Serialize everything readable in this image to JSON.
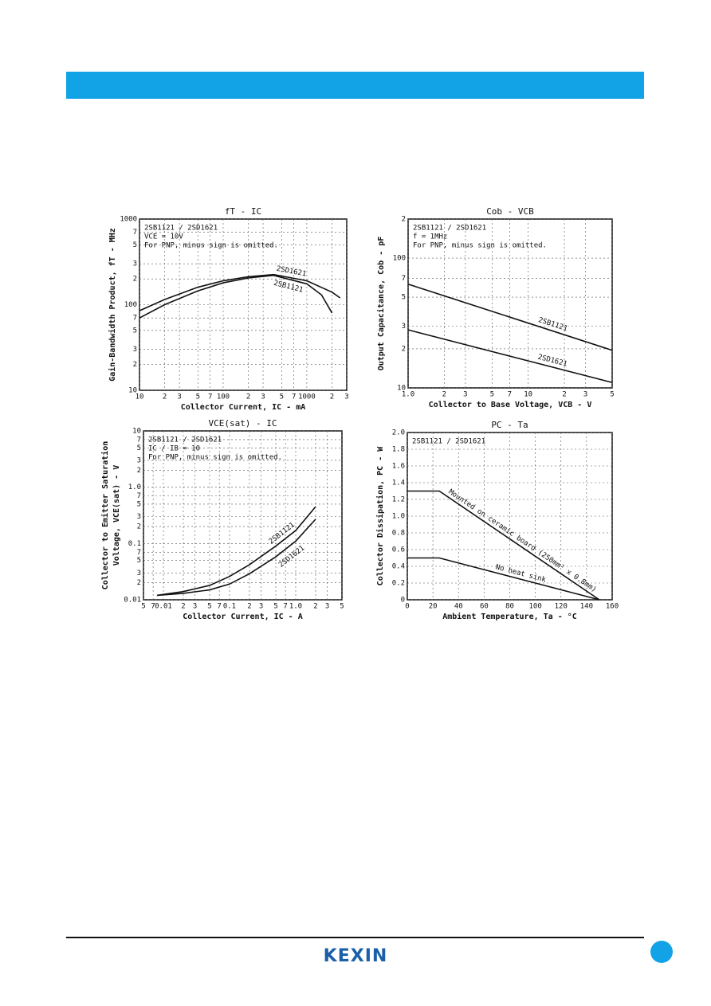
{
  "chart_data": [
    {
      "type": "line",
      "title": "fT - IC",
      "xlabel": "Collector Current, IC - mA",
      "ylabel": "Gain-Bandwidth Product, fT - MHz",
      "annotations": [
        "2SB1121 / 2SD1621",
        "VCE = 10V",
        "For PNP, minus sign is omitted."
      ],
      "xlog": true,
      "ylog": true,
      "grid": true,
      "xlim": [
        10,
        3000
      ],
      "ylim": [
        10,
        1000
      ],
      "xticks": [
        10,
        {
          "value": 20,
          "label": "2"
        },
        {
          "value": 30,
          "label": "3"
        },
        {
          "value": 50,
          "label": "5"
        },
        {
          "value": 70,
          "label": "7"
        },
        100,
        {
          "value": 200,
          "label": "2"
        },
        {
          "value": 300,
          "label": "3"
        },
        {
          "value": 500,
          "label": "5"
        },
        {
          "value": 700,
          "label": "7"
        },
        1000,
        {
          "value": 2000,
          "label": "2"
        },
        {
          "value": 3000,
          "label": "3"
        }
      ],
      "yticks": [
        10,
        {
          "value": 20,
          "label": "2"
        },
        {
          "value": 30,
          "label": "3"
        },
        {
          "value": 50,
          "label": "5"
        },
        {
          "value": 70,
          "label": "7"
        },
        100,
        {
          "value": 200,
          "label": "2"
        },
        {
          "value": 300,
          "label": "3"
        },
        {
          "value": 500,
          "label": "5"
        },
        {
          "value": 700,
          "label": "7"
        },
        1000
      ],
      "series": [
        {
          "name": "2SD1621",
          "color": "#111111",
          "x": [
            10,
            20,
            50,
            100,
            200,
            400,
            1000,
            2000,
            2500
          ],
          "values": [
            85,
            115,
            160,
            190,
            212,
            225,
            190,
            140,
            120
          ]
        },
        {
          "name": "2SB1121",
          "color": "#111111",
          "x": [
            10,
            20,
            50,
            100,
            200,
            400,
            1000,
            1500,
            2000
          ],
          "values": [
            70,
            100,
            145,
            180,
            205,
            220,
            175,
            130,
            80
          ]
        }
      ]
    },
    {
      "type": "line",
      "title": "Cob - VCB",
      "xlabel": "Collector to Base Voltage, VCB - V",
      "ylabel": "Output Capacitance, Cob - pF",
      "annotations": [
        "2SB1121 / 2SD1621",
        "f = 1MHz",
        "For PNP, minus sign is omitted."
      ],
      "xlog": true,
      "ylog": true,
      "grid": true,
      "xlim": [
        1,
        50
      ],
      "ylim": [
        10,
        200
      ],
      "xticks": [
        {
          "value": 1,
          "label": "1.0"
        },
        2,
        3,
        5,
        7,
        10,
        {
          "value": 20,
          "label": "2"
        },
        {
          "value": 30,
          "label": "3"
        },
        {
          "value": 50,
          "label": "5"
        }
      ],
      "yticks": [
        10,
        {
          "value": 20,
          "label": "2"
        },
        {
          "value": 30,
          "label": "3"
        },
        {
          "value": 50,
          "label": "5"
        },
        {
          "value": 70,
          "label": "7"
        },
        100,
        {
          "value": 200,
          "label": "2"
        }
      ],
      "series": [
        {
          "name": "2SB1121",
          "color": "#111111",
          "x": [
            1,
            50
          ],
          "values": [
            63,
            19.5
          ]
        },
        {
          "name": "2SD1621",
          "color": "#111111",
          "x": [
            1,
            50
          ],
          "values": [
            28,
            11
          ]
        }
      ]
    },
    {
      "type": "line",
      "title": "VCE(sat) - IC",
      "xlabel": "Collector Current, IC - A",
      "ylabel": [
        "Collector to Emitter Saturation",
        "Voltage, VCE(sat) - V"
      ],
      "annotations": [
        "2SB1121 / 2SD1621",
        "IC / IB = 10",
        "For PNP, minus sign is omitted."
      ],
      "xlog": true,
      "ylog": true,
      "grid": true,
      "xlim": [
        0.005,
        5
      ],
      "ylim": [
        0.01,
        10
      ],
      "xticks": [
        {
          "value": 0.005,
          "label": "5"
        },
        {
          "value": 0.007,
          "label": "7"
        },
        0.01,
        {
          "value": 0.02,
          "label": "2"
        },
        {
          "value": 0.03,
          "label": "3"
        },
        {
          "value": 0.05,
          "label": "5"
        },
        {
          "value": 0.07,
          "label": "7"
        },
        0.1,
        {
          "value": 0.2,
          "label": "2"
        },
        {
          "value": 0.3,
          "label": "3"
        },
        {
          "value": 0.5,
          "label": "5"
        },
        {
          "value": 0.7,
          "label": "7"
        },
        {
          "value": 1,
          "label": "1.0"
        },
        2,
        3,
        5
      ],
      "yticks": [
        0.01,
        {
          "value": 0.02,
          "label": "2"
        },
        {
          "value": 0.03,
          "label": "3"
        },
        {
          "value": 0.05,
          "label": "5"
        },
        {
          "value": 0.07,
          "label": "7"
        },
        0.1,
        {
          "value": 0.2,
          "label": "2"
        },
        {
          "value": 0.3,
          "label": "3"
        },
        {
          "value": 0.5,
          "label": "5"
        },
        {
          "value": 0.7,
          "label": "7"
        },
        {
          "value": 1,
          "label": "1.0"
        },
        2,
        3,
        5,
        7,
        10
      ],
      "series": [
        {
          "name": "2SB1121",
          "color": "#111111",
          "x": [
            0.008,
            0.02,
            0.05,
            0.1,
            0.2,
            0.5,
            1,
            2
          ],
          "values": [
            0.012,
            0.014,
            0.018,
            0.026,
            0.042,
            0.09,
            0.17,
            0.45
          ]
        },
        {
          "name": "2SD1621",
          "color": "#111111",
          "x": [
            0.008,
            0.02,
            0.05,
            0.1,
            0.2,
            0.5,
            1,
            2
          ],
          "values": [
            0.012,
            0.013,
            0.015,
            0.019,
            0.029,
            0.058,
            0.11,
            0.27
          ]
        }
      ]
    },
    {
      "type": "line",
      "title": "PC - Ta",
      "xlabel": "Ambient Temperature, Ta - °C",
      "ylabel": "Collector Dissipation, PC - W",
      "annotations": [
        "2SB1121 / 2SD1621"
      ],
      "xlog": false,
      "ylog": false,
      "grid": true,
      "xlim": [
        0,
        160
      ],
      "ylim": [
        0,
        2
      ],
      "xticks": [
        0,
        20,
        40,
        60,
        80,
        100,
        120,
        140,
        160
      ],
      "yticks": [
        0,
        0.2,
        0.4,
        0.6,
        0.8,
        {
          "value": 1,
          "label": "1.0"
        },
        1.2,
        1.4,
        1.6,
        1.8,
        {
          "value": 2,
          "label": "2.0"
        }
      ],
      "series": [
        {
          "name": "Mounted on ceramic board (250mm² x 0.8mm)",
          "color": "#111111",
          "x": [
            0,
            25,
            150
          ],
          "values": [
            1.3,
            1.3,
            0
          ]
        },
        {
          "name": "No heat sink",
          "color": "#111111",
          "x": [
            0,
            25,
            150
          ],
          "values": [
            0.5,
            0.5,
            0
          ]
        }
      ]
    }
  ],
  "footer": {
    "logo": "KEXIN"
  }
}
